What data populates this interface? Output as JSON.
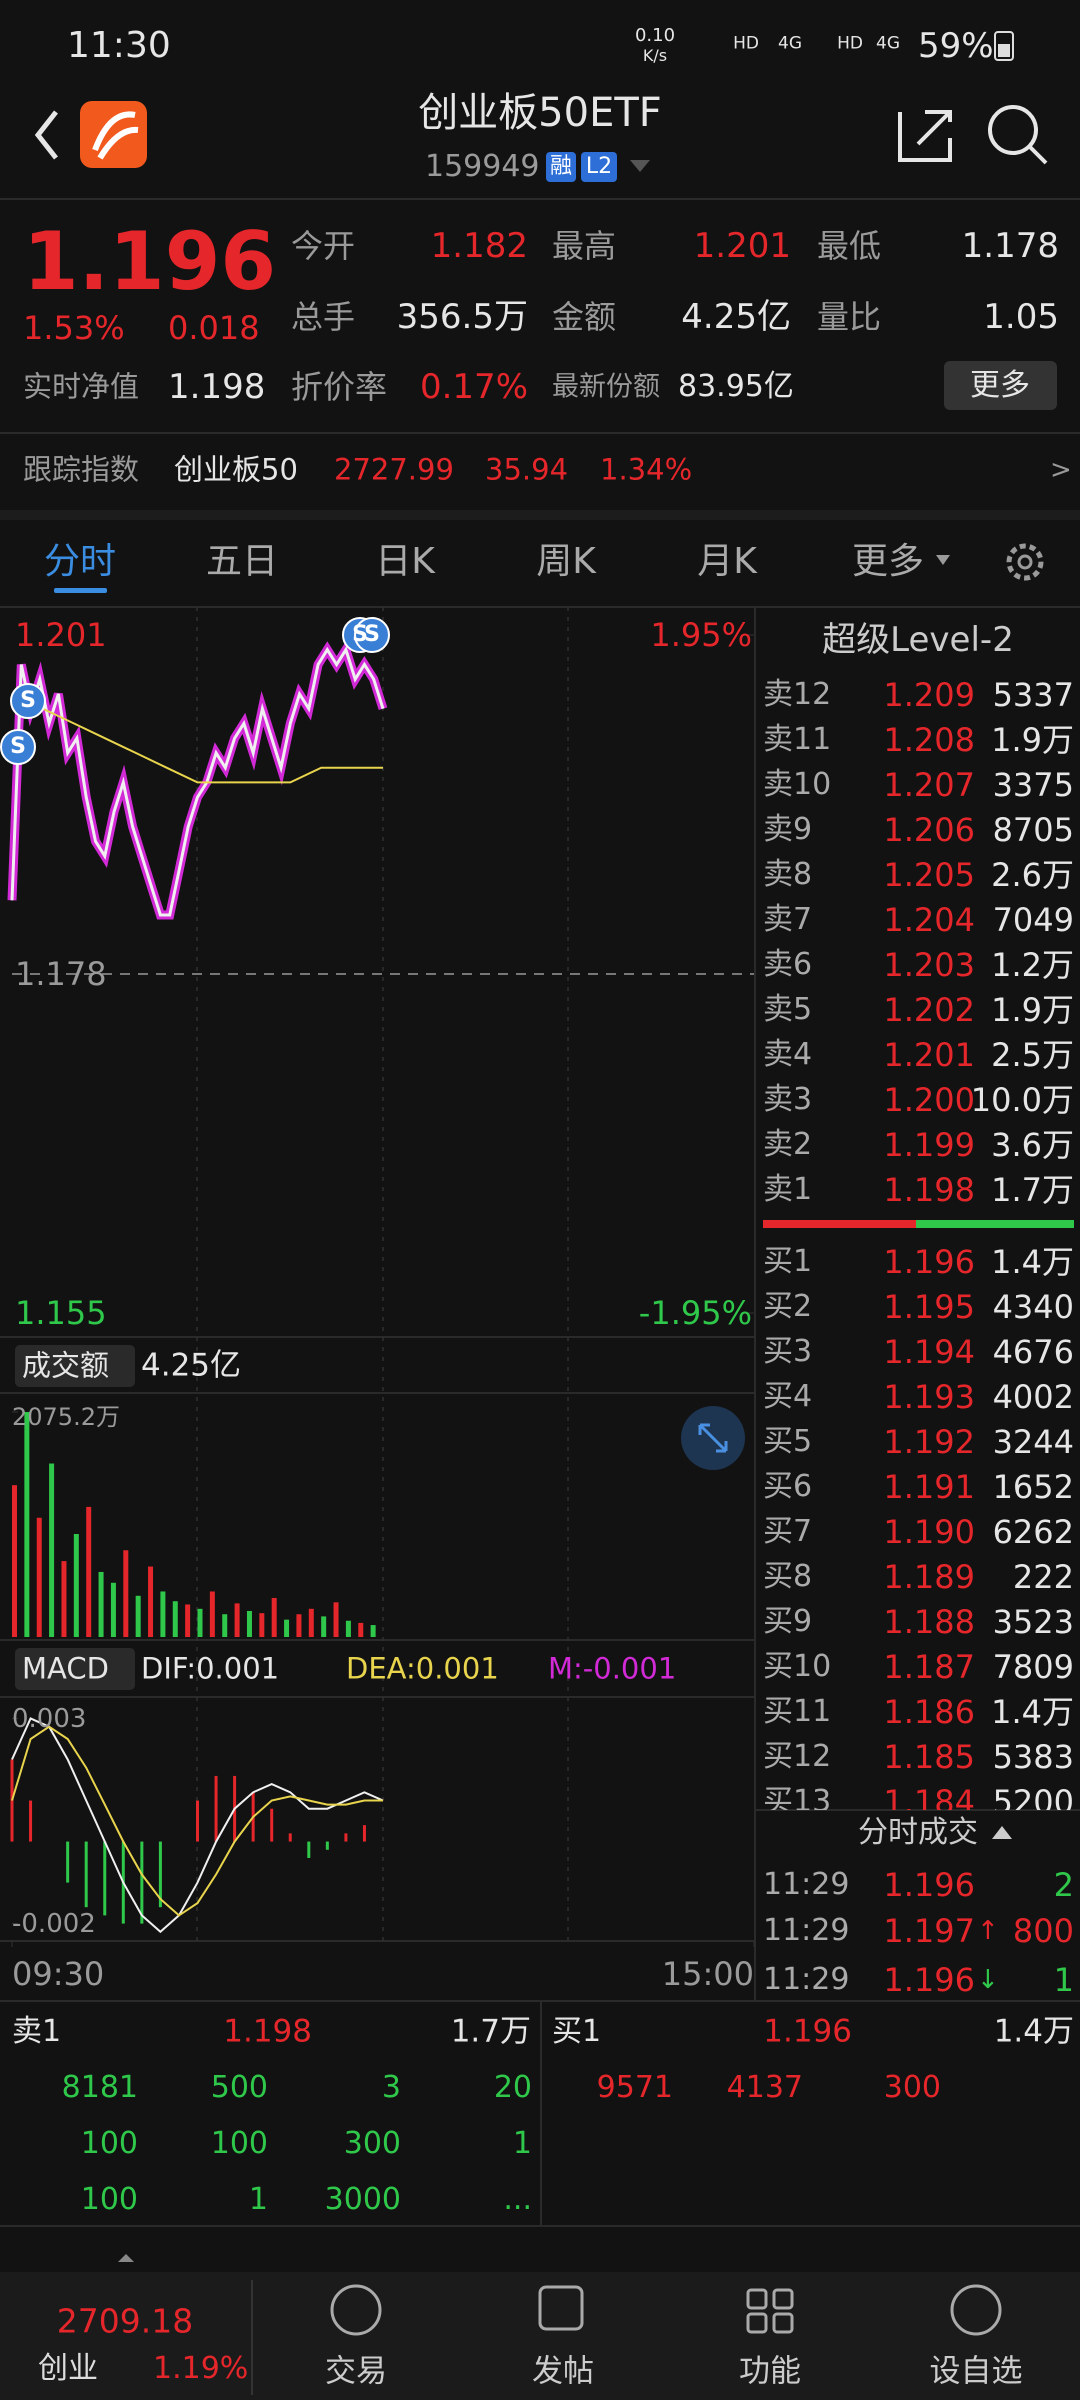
{
  "status": {
    "time": "11:30",
    "net_speed": "0.10",
    "net_unit": "K/s",
    "icons": [
      "HD",
      "4G",
      "HD",
      "4G"
    ],
    "battery": "59%"
  },
  "header": {
    "title": "创业板50ETF",
    "code": "159949",
    "badges": [
      "融",
      "L2"
    ]
  },
  "quote": {
    "price": "1.196",
    "change_pct": "1.53%",
    "change": "0.018",
    "stats": [
      {
        "label": "今开",
        "value": "1.182",
        "color": "#e5262b"
      },
      {
        "label": "最高",
        "value": "1.201",
        "color": "#e5262b"
      },
      {
        "label": "最低",
        "value": "1.178",
        "color": "#e6e6e6"
      },
      {
        "label": "总手",
        "value": "356.5万",
        "color": "#e6e6e6"
      },
      {
        "label": "金额",
        "value": "4.25亿",
        "color": "#e6e6e6"
      },
      {
        "label": "量比",
        "value": "1.05",
        "color": "#e6e6e6"
      }
    ],
    "nav_label": "实时净值",
    "nav_value": "1.198",
    "discount_label": "折价率",
    "discount_value": "0.17%",
    "shares_label": "最新份额",
    "shares_value": "83.95亿",
    "more": "更多"
  },
  "track": {
    "label": "跟踪指数",
    "name": "创业板50",
    "value": "2727.99",
    "change": "35.94",
    "change_pct": "1.34%",
    "arrow": ">"
  },
  "tabs": [
    "分时",
    "五日",
    "日K",
    "周K",
    "月K",
    "更多"
  ],
  "chart_data": {
    "type": "line",
    "xlim": [
      0,
      240
    ],
    "xticks": [
      {
        "value": 0,
        "label": "09:30"
      },
      {
        "value": 240,
        "label": "15:00"
      }
    ],
    "ylim": [
      1.155,
      1.201
    ],
    "yticks": [
      1.155,
      1.178,
      1.201
    ],
    "y2lim": [
      -1.95,
      1.95
    ],
    "y2ticks": [
      {
        "value": -1.95,
        "label": "-1.95%"
      },
      {
        "value": 1.95,
        "label": "1.95%"
      }
    ],
    "series": [
      {
        "color": "#f0f0f0",
        "x": [
          0,
          3,
          6,
          9,
          12,
          15,
          18,
          21,
          24,
          27,
          30,
          33,
          36,
          39,
          42,
          45,
          48,
          51,
          54,
          57,
          60,
          63,
          66,
          69,
          72,
          75,
          78,
          81,
          84,
          87,
          90,
          93,
          96,
          99,
          102,
          105,
          108,
          111,
          114,
          117,
          120
        ],
        "values": [
          1.183,
          1.199,
          1.196,
          1.198,
          1.195,
          1.197,
          1.193,
          1.194,
          1.19,
          1.187,
          1.186,
          1.189,
          1.191,
          1.188,
          1.186,
          1.184,
          1.182,
          1.182,
          1.185,
          1.188,
          1.19,
          1.191,
          1.193,
          1.192,
          1.194,
          1.195,
          1.193,
          1.196,
          1.194,
          1.192,
          1.195,
          1.197,
          1.196,
          1.199,
          1.2,
          1.199,
          1.2,
          1.198,
          1.199,
          1.198,
          1.196
        ]
      },
      {
        "color": "#e8d44d",
        "x": [
          0,
          10,
          20,
          30,
          40,
          50,
          60,
          70,
          80,
          90,
          100,
          110,
          120
        ],
        "values": [
          1.196,
          1.196,
          1.195,
          1.194,
          1.193,
          1.192,
          1.191,
          1.191,
          1.191,
          1.191,
          1.192,
          1.192,
          1.192
        ]
      }
    ],
    "signals": [
      "S",
      "S",
      "S",
      "S"
    ],
    "volume": {
      "label": "成交额",
      "value": "4.25亿",
      "ylim": [
        0,
        2075.2
      ],
      "yticks": [
        {
          "value": 2075.2,
          "label": "2075.2万"
        }
      ],
      "x": [
        0,
        4,
        8,
        12,
        16,
        20,
        24,
        28,
        32,
        36,
        40,
        44,
        48,
        52,
        56,
        60,
        64,
        68,
        72,
        76,
        80,
        84,
        88,
        92,
        96,
        100,
        104,
        108,
        112,
        116
      ],
      "values": [
        1400,
        2075,
        1100,
        1600,
        700,
        950,
        1200,
        600,
        500,
        800,
        380,
        650,
        420,
        330,
        300,
        260,
        420,
        210,
        310,
        240,
        220,
        360,
        160,
        210,
        260,
        190,
        320,
        150,
        130,
        110
      ],
      "colors": [
        "#e5262b",
        "#2fc84a",
        "#e5262b",
        "#2fc84a",
        "#e5262b",
        "#2fc84a",
        "#e5262b",
        "#2fc84a",
        "#2fc84a",
        "#e5262b",
        "#2fc84a",
        "#e5262b",
        "#2fc84a",
        "#2fc84a",
        "#e5262b",
        "#2fc84a",
        "#e5262b",
        "#2fc84a",
        "#e5262b",
        "#2fc84a",
        "#e5262b",
        "#e5262b",
        "#2fc84a",
        "#e5262b",
        "#e5262b",
        "#2fc84a",
        "#e5262b",
        "#2fc84a",
        "#e5262b",
        "#2fc84a"
      ]
    },
    "macd": {
      "label": "MACD",
      "dif_label": "DIF:0.001",
      "dea_label": "DEA:0.001",
      "m_label": "M:-0.001",
      "ylim": [
        -0.0024,
        0.0035
      ],
      "yticks": [
        -0.002,
        0.003
      ],
      "x": [
        0,
        6,
        12,
        18,
        24,
        30,
        36,
        42,
        48,
        54,
        60,
        66,
        72,
        78,
        84,
        90,
        96,
        102,
        108,
        114,
        120
      ],
      "dif": {
        "color": "#f0f0f0",
        "values": [
          0.002,
          0.003,
          0.0028,
          0.002,
          0.001,
          0,
          -0.001,
          -0.0018,
          -0.0022,
          -0.0018,
          -0.001,
          0,
          0.0008,
          0.0012,
          0.0014,
          0.0012,
          0.0008,
          0.0008,
          0.001,
          0.0012,
          0.001
        ]
      },
      "dea": {
        "color": "#e8d44d",
        "values": [
          0.001,
          0.0025,
          0.0028,
          0.0025,
          0.0018,
          0.0009,
          0,
          -0.0008,
          -0.0014,
          -0.0018,
          -0.0015,
          -0.0008,
          0,
          0.0006,
          0.001,
          0.0011,
          0.001,
          0.0009,
          0.0009,
          0.001,
          0.001
        ]
      },
      "hist": [
        0.002,
        0.001,
        0,
        -0.001,
        -0.0016,
        -0.0018,
        -0.002,
        -0.002,
        -0.0016,
        0,
        0.001,
        0.0016,
        0.0016,
        0.0012,
        0.0008,
        0.0002,
        -0.0004,
        -0.0002,
        0.0002,
        0.0004,
        0
      ]
    }
  },
  "order_book": {
    "title": "超级Level-2",
    "asks": [
      [
        "卖12",
        "1.209",
        "5337"
      ],
      [
        "卖11",
        "1.208",
        "1.9万"
      ],
      [
        "卖10",
        "1.207",
        "3375"
      ],
      [
        "卖9",
        "1.206",
        "8705"
      ],
      [
        "卖8",
        "1.205",
        "2.6万"
      ],
      [
        "卖7",
        "1.204",
        "7049"
      ],
      [
        "卖6",
        "1.203",
        "1.2万"
      ],
      [
        "卖5",
        "1.202",
        "1.9万"
      ],
      [
        "卖4",
        "1.201",
        "2.5万"
      ],
      [
        "卖3",
        "1.200",
        "10.0万"
      ],
      [
        "卖2",
        "1.199",
        "3.6万"
      ],
      [
        "卖1",
        "1.198",
        "1.7万"
      ]
    ],
    "bids": [
      [
        "买1",
        "1.196",
        "1.4万"
      ],
      [
        "买2",
        "1.195",
        "4340"
      ],
      [
        "买3",
        "1.194",
        "4676"
      ],
      [
        "买4",
        "1.193",
        "4002"
      ],
      [
        "买5",
        "1.192",
        "3244"
      ],
      [
        "买6",
        "1.191",
        "1652"
      ],
      [
        "买7",
        "1.190",
        "6262"
      ],
      [
        "买8",
        "1.189",
        "222"
      ],
      [
        "买9",
        "1.188",
        "3523"
      ],
      [
        "买10",
        "1.187",
        "7809"
      ],
      [
        "买11",
        "1.186",
        "1.4万"
      ],
      [
        "买12",
        "1.185",
        "5383"
      ],
      [
        "买13",
        "1.184",
        "5200"
      ]
    ],
    "trades_title": "分时成交",
    "trades": [
      {
        "time": "11:29",
        "price": "1.196",
        "arrow": "",
        "volume": "2",
        "color": "#2fc84a"
      },
      {
        "time": "11:29",
        "price": "1.197",
        "arrow": "↑",
        "volume": "800",
        "color": "#e5262b"
      },
      {
        "time": "11:29",
        "price": "1.196",
        "arrow": "↓",
        "volume": "1",
        "color": "#2fc84a"
      }
    ]
  },
  "depth": {
    "ask": [
      "卖1",
      "1.198",
      "1.7万"
    ],
    "bid": [
      "买1",
      "1.196",
      "1.4万"
    ],
    "ask_queue": [
      [
        "8181",
        "500",
        "3",
        "20"
      ],
      [
        "100",
        "100",
        "300",
        "1"
      ],
      [
        "100",
        "1",
        "3000",
        "..."
      ]
    ],
    "bid_queue": [
      "9571",
      "4137",
      "300"
    ]
  },
  "bottom_nav": {
    "index_value": "2709.18",
    "index_name": "创业",
    "index_pct": "1.19%",
    "items": [
      "交易",
      "发帖",
      "功能",
      "设自选"
    ]
  }
}
